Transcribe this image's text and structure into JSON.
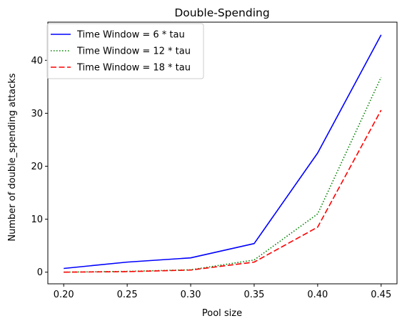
{
  "chart_data": {
    "type": "line",
    "title": "Double-Spending",
    "xlabel": "Pool size",
    "ylabel": "Number of double_spending attacks",
    "x": [
      0.2,
      0.25,
      0.3,
      0.35,
      0.4,
      0.45
    ],
    "x_tick_labels": [
      "0.20",
      "0.25",
      "0.30",
      "0.35",
      "0.40",
      "0.45"
    ],
    "y_ticks": [
      0,
      10,
      20,
      30,
      40
    ],
    "y_tick_labels": [
      "0",
      "10",
      "20",
      "30",
      "40"
    ],
    "xlim": [
      0.1875,
      0.4625
    ],
    "ylim": [
      -2.2,
      47.2
    ],
    "grid": false,
    "legend_position": "top-left",
    "series": [
      {
        "name": "Time Window = 6 * tau",
        "color": "#0000ff",
        "style": "solid",
        "values": [
          0.7,
          1.9,
          2.7,
          5.4,
          22.5,
          44.8
        ]
      },
      {
        "name": "Time Window = 12 * tau",
        "color": "#008000",
        "style": "dotted",
        "values": [
          0.0,
          0.15,
          0.45,
          2.3,
          11.0,
          36.8
        ]
      },
      {
        "name": "Time Window = 18 * tau",
        "color": "#ff0000",
        "style": "dashed",
        "values": [
          0.0,
          0.1,
          0.4,
          1.9,
          8.5,
          30.6
        ]
      }
    ]
  }
}
